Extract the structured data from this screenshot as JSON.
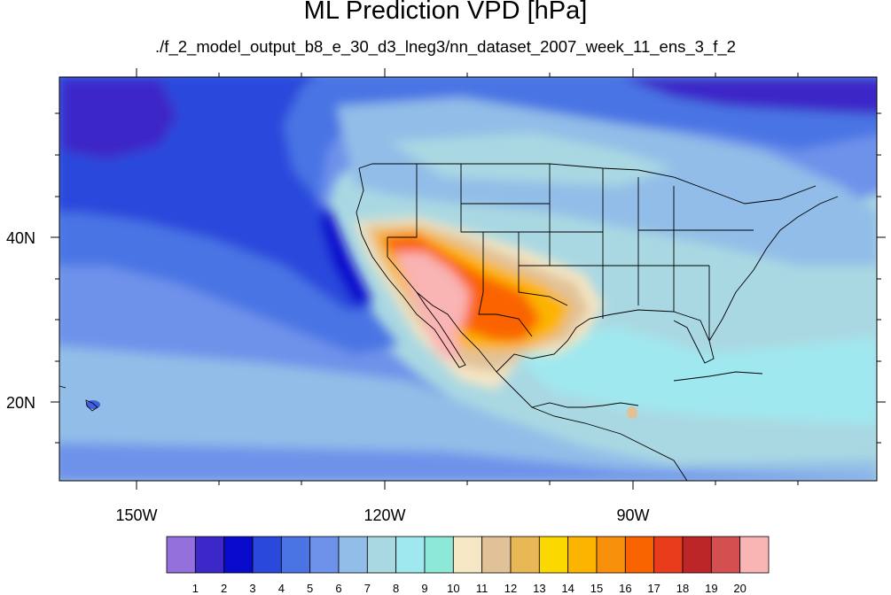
{
  "title": "ML Prediction VPD [hPa]",
  "subtitle": "./f_2_model_output_b8_e_30_d3_lneg3/nn_dataset_2007_week_11_ens_3_f_2",
  "lon_labels": [
    "150W",
    "120W",
    "90W"
  ],
  "lat_labels": [
    "40N",
    "20N"
  ],
  "colorbar": {
    "labels": [
      "1",
      "2",
      "3",
      "4",
      "5",
      "6",
      "7",
      "8",
      "9",
      "10",
      "11",
      "12",
      "13",
      "14",
      "15",
      "16",
      "17",
      "18",
      "19",
      "20"
    ],
    "colors": [
      "#9370db",
      "#3c28c8",
      "#0a0acd",
      "#2a48dc",
      "#4a74e4",
      "#6e92ea",
      "#92bde8",
      "#aad8e2",
      "#a0e8ef",
      "#8ee8d8",
      "#f5e6c4",
      "#e1c298",
      "#e9b856",
      "#fbd800",
      "#fcb400",
      "#f9900c",
      "#fa6400",
      "#e83c1c",
      "#bc2628",
      "#d45050",
      "#f9b4b4"
    ]
  }
}
